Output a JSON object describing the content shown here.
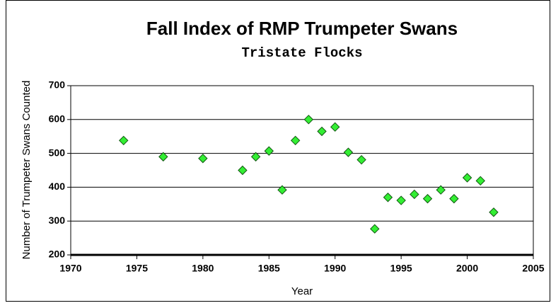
{
  "chart_data": {
    "type": "scatter",
    "title": "Fall Index of RMP Trumpeter Swans",
    "subtitle": "Tristate Flocks",
    "x_label": "Year",
    "y_label": "Number of Trumpeter Swans Counted",
    "x": [
      1974,
      1977,
      1980,
      1983,
      1984,
      1985,
      1986,
      1987,
      1988,
      1989,
      1990,
      1991,
      1992,
      1993,
      1994,
      1995,
      1996,
      1997,
      1998,
      1999,
      2000,
      2001,
      2002
    ],
    "values": [
      538,
      490,
      485,
      450,
      490,
      507,
      392,
      538,
      600,
      565,
      578,
      503,
      481,
      277,
      370,
      361,
      379,
      366,
      392,
      366,
      428,
      419,
      326
    ],
    "color": "#33ee33",
    "xlim": [
      1970,
      2005
    ],
    "xticks": [
      1970,
      1975,
      1980,
      1985,
      1990,
      1995,
      2000,
      2005
    ],
    "ylim": [
      200,
      700
    ],
    "yticks": [
      200,
      300,
      400,
      500,
      600,
      700
    ],
    "grid": true
  }
}
